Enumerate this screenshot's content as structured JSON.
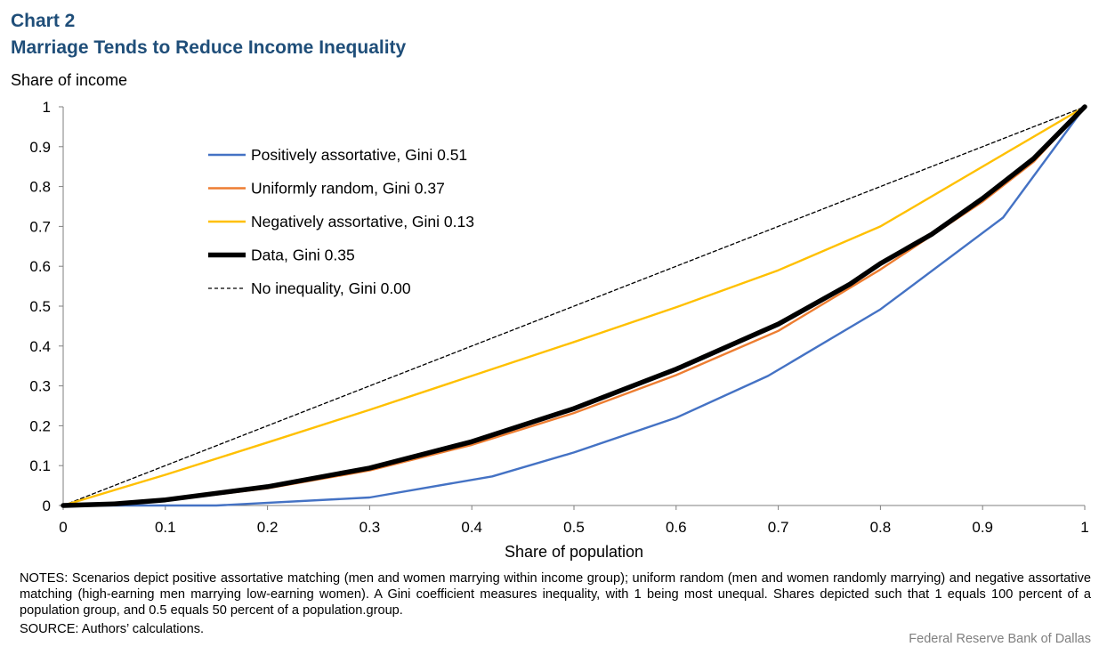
{
  "header": {
    "chart_label": "Chart 2",
    "title": "Marriage Tends to Reduce Income Inequality"
  },
  "footer": {
    "notes": "NOTES: Scenarios depict positive assortative matching (men and women marrying within income group); uniform random (men and women randomly marrying) and negative assortative matching (high-earning men marrying low-earning women). A Gini coefficient measures inequality, with 1 being most unequal. Shares depicted such that 1 equals 100 percent of a population group, and 0.5 equals 50 percent of a population.group.",
    "source": "SOURCE: Authors’ calculations.",
    "credit": "Federal Reserve Bank of Dallas"
  },
  "chart_data": {
    "type": "line",
    "title": "Marriage Tends to Reduce Income Inequality",
    "xlabel": "Share of population",
    "ylabel": "Share of income",
    "xlim": [
      0,
      1
    ],
    "ylim": [
      0,
      1
    ],
    "x_ticks": [
      "0",
      "0.1",
      "0.2",
      "0.3",
      "0.4",
      "0.5",
      "0.6",
      "0.7",
      "0.8",
      "0.9",
      "1"
    ],
    "y_ticks": [
      "0",
      "0.1",
      "0.2",
      "0.3",
      "0.4",
      "0.5",
      "0.6",
      "0.7",
      "0.8",
      "0.9",
      "1"
    ],
    "grid": false,
    "legend_position": "upper-left inside plot",
    "series": [
      {
        "name": "Positively assortative, Gini 0.51",
        "color": "#4472c4",
        "style": "solid",
        "points": [
          [
            0,
            0
          ],
          [
            0.15,
            0
          ],
          [
            0.3,
            0.02
          ],
          [
            0.42,
            0.073
          ],
          [
            0.5,
            0.133
          ],
          [
            0.6,
            0.22
          ],
          [
            0.69,
            0.325
          ],
          [
            0.8,
            0.492
          ],
          [
            0.92,
            0.722
          ],
          [
            1,
            1
          ]
        ]
      },
      {
        "name": "Uniformly random, Gini 0.37",
        "color": "#ed7d31",
        "style": "solid",
        "points": [
          [
            0,
            0
          ],
          [
            0.05,
            0.003
          ],
          [
            0.1,
            0.012
          ],
          [
            0.2,
            0.043
          ],
          [
            0.3,
            0.088
          ],
          [
            0.4,
            0.152
          ],
          [
            0.5,
            0.232
          ],
          [
            0.6,
            0.327
          ],
          [
            0.7,
            0.438
          ],
          [
            0.8,
            0.592
          ],
          [
            0.9,
            0.762
          ],
          [
            0.95,
            0.862
          ],
          [
            1,
            1
          ]
        ]
      },
      {
        "name": "Negatively assortative, Gini 0.13",
        "color": "#ffc000",
        "style": "solid",
        "points": [
          [
            0,
            0
          ],
          [
            0.1,
            0.077
          ],
          [
            0.2,
            0.158
          ],
          [
            0.3,
            0.24
          ],
          [
            0.4,
            0.325
          ],
          [
            0.5,
            0.41
          ],
          [
            0.6,
            0.497
          ],
          [
            0.7,
            0.59
          ],
          [
            0.8,
            0.7
          ],
          [
            1,
            1
          ]
        ]
      },
      {
        "name": "Data, Gini 0.35",
        "color": "#000000",
        "style": "thick",
        "points": [
          [
            0,
            0
          ],
          [
            0.05,
            0.004
          ],
          [
            0.1,
            0.014
          ],
          [
            0.2,
            0.047
          ],
          [
            0.3,
            0.094
          ],
          [
            0.4,
            0.16
          ],
          [
            0.5,
            0.243
          ],
          [
            0.6,
            0.342
          ],
          [
            0.7,
            0.455
          ],
          [
            0.77,
            0.555
          ],
          [
            0.8,
            0.607
          ],
          [
            0.85,
            0.68
          ],
          [
            0.9,
            0.77
          ],
          [
            0.95,
            0.87
          ],
          [
            1,
            1
          ]
        ]
      },
      {
        "name": "No inequality, Gini 0.00",
        "color": "#000000",
        "style": "dashed",
        "points": [
          [
            0,
            0
          ],
          [
            1,
            1
          ]
        ]
      }
    ]
  }
}
